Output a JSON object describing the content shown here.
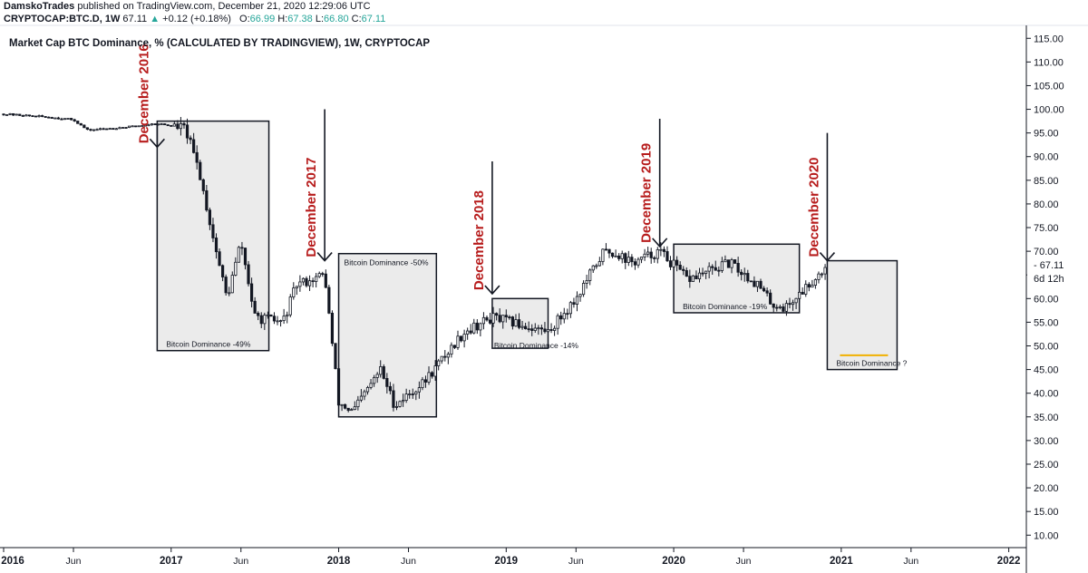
{
  "header": {
    "author": "DamskoTrades",
    "published_text": "published on TradingView.com, December 21, 2020 12:29:06 UTC",
    "symbol": "CRYPTOCAP:BTC.D, 1W",
    "last": "67.11",
    "arrow": "▲",
    "change": "+0.12 (+0.18%)",
    "o_label": "O:",
    "o_value": "66.99",
    "h_label": "H:",
    "h_value": "67.38",
    "l_label": "L:",
    "l_value": "66.80",
    "c_label": "C:",
    "c_value": "67.11"
  },
  "colors": {
    "up_candle": "#131722",
    "down_candle": "#131722",
    "annotation_red": "#b71c1c",
    "box_fill": "#ebebeb",
    "target_line": "#f0b000",
    "change_green": "#26a69a"
  },
  "chart_data": {
    "type": "candlestick",
    "title": "Market Cap BTC Dominance, % (CALCULATED BY TRADINGVIEW), 1W, CRYPTOCAP",
    "y_axis": {
      "side": "right",
      "range": [
        8,
        116
      ],
      "ticks": [
        "115.00",
        "110.00",
        "105.00",
        "100.00",
        "95.00",
        "90.00",
        "85.00",
        "80.00",
        "75.00",
        "70.00",
        "65.00",
        "60.00",
        "55.00",
        "50.00",
        "45.00",
        "40.00",
        "35.00",
        "30.00",
        "25.00",
        "20.00",
        "15.00",
        "10.00"
      ],
      "last_price_label": "67.11",
      "countdown_label": "6d 12h"
    },
    "x_axis": {
      "range": [
        "2016-01",
        "2022-02"
      ],
      "ticks": [
        {
          "label": "2016",
          "t": "2016-01",
          "bold": true
        },
        {
          "label": "Jun",
          "t": "2016-06",
          "bold": false
        },
        {
          "label": "2017",
          "t": "2017-01",
          "bold": true
        },
        {
          "label": "Jun",
          "t": "2017-06",
          "bold": false
        },
        {
          "label": "2018",
          "t": "2018-01",
          "bold": true
        },
        {
          "label": "Jun",
          "t": "2018-06",
          "bold": false
        },
        {
          "label": "2019",
          "t": "2019-01",
          "bold": true
        },
        {
          "label": "Jun",
          "t": "2019-06",
          "bold": false
        },
        {
          "label": "2020",
          "t": "2020-01",
          "bold": true
        },
        {
          "label": "Jun",
          "t": "2020-06",
          "bold": false
        },
        {
          "label": "2021",
          "t": "2021-01",
          "bold": true
        },
        {
          "label": "Jun",
          "t": "2021-06",
          "bold": false
        },
        {
          "label": "2022",
          "t": "2022-01",
          "bold": true
        }
      ]
    },
    "price_path": [
      [
        "2016-01",
        99.0
      ],
      [
        "2016-04",
        98.4
      ],
      [
        "2016-06",
        97.8
      ],
      [
        "2016-07",
        95.6
      ],
      [
        "2016-10",
        96.3
      ],
      [
        "2016-12",
        97.0
      ],
      [
        "2017-02",
        96.0
      ],
      [
        "2017-03",
        87.0
      ],
      [
        "2017-04",
        73.0
      ],
      [
        "2017-05",
        60.0
      ],
      [
        "2017-06",
        72.0
      ],
      [
        "2017-07",
        56.0
      ],
      [
        "2017-09",
        55.0
      ],
      [
        "2017-10",
        63.0
      ],
      [
        "2017-12",
        65.0
      ],
      [
        "2018-01",
        38.0
      ],
      [
        "2018-02",
        36.0
      ],
      [
        "2018-04",
        45.0
      ],
      [
        "2018-05",
        37.5
      ],
      [
        "2018-07",
        42.0
      ],
      [
        "2018-10",
        53.0
      ],
      [
        "2018-12",
        56.0
      ],
      [
        "2019-04",
        53.0
      ],
      [
        "2019-06",
        60.0
      ],
      [
        "2019-08",
        70.0
      ],
      [
        "2019-09",
        69.5
      ],
      [
        "2019-10",
        67.5
      ],
      [
        "2019-12",
        70.0
      ],
      [
        "2020-02",
        64.0
      ],
      [
        "2020-05",
        67.5
      ],
      [
        "2020-07",
        63.0
      ],
      [
        "2020-08",
        59.0
      ],
      [
        "2020-09",
        58.0
      ],
      [
        "2020-11",
        64.0
      ],
      [
        "2020-12",
        67.11
      ]
    ],
    "annotations": [
      {
        "label": "December 2016",
        "t": "2016-12",
        "arrow_top": 97,
        "arrow_bottom": 92
      },
      {
        "label": "December 2017",
        "t": "2017-12",
        "arrow_top": 100,
        "arrow_bottom": 68
      },
      {
        "label": "December 2018",
        "t": "2018-12",
        "arrow_top": 89,
        "arrow_bottom": 61
      },
      {
        "label": "December 2019",
        "t": "2019-12",
        "arrow_top": 98,
        "arrow_bottom": 71
      },
      {
        "label": "December 2020",
        "t": "2020-12",
        "arrow_top": 95,
        "arrow_bottom": 68
      }
    ],
    "boxes": [
      {
        "t0": "2016-12",
        "t1": "2017-08",
        "top": 97.5,
        "bottom": 49.0,
        "label": "Bitcoin Dominance -49%",
        "label_pos": "bottom"
      },
      {
        "t0": "2018-01",
        "t1": "2018-08",
        "top": 69.5,
        "bottom": 35.0,
        "label": "Bitcoin Dominance -50%",
        "label_pos": "top"
      },
      {
        "t0": "2018-12",
        "t1": "2019-04",
        "top": 60.0,
        "bottom": 49.5,
        "label": "Bitcoin Dominance -14%",
        "label_pos": "bottom-overflow"
      },
      {
        "t0": "2020-01",
        "t1": "2020-10",
        "top": 71.5,
        "bottom": 57.0,
        "label": "Bitcoin Dominance -19%",
        "label_pos": "bottom"
      },
      {
        "t0": "2020-12",
        "t1": "2021-05",
        "top": 68.0,
        "bottom": 45.0,
        "label": "Bitcoin Dominance ?",
        "label_pos": "bottom",
        "target": 48.0
      }
    ]
  }
}
